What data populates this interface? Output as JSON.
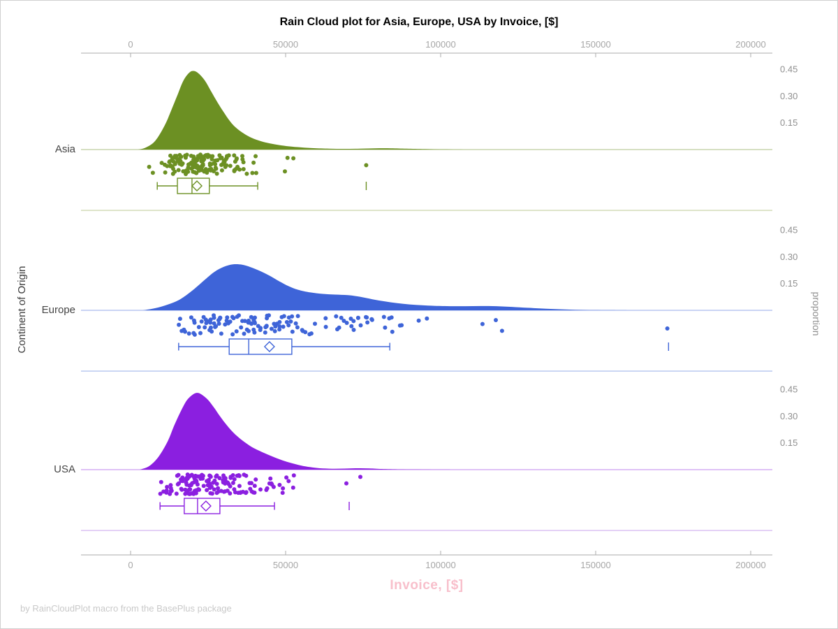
{
  "title": "Rain Cloud plot for Asia, Europe, USA by Invoice, [$]",
  "footer": "by RainCloudPlot macro from the BasePlus package",
  "x_axis": {
    "title": "Invoice, [$]",
    "title_color": "#f8bfcb",
    "ticks": [
      0,
      50000,
      100000,
      150000,
      200000
    ],
    "tick_labels": [
      "0",
      "50000",
      "100000",
      "150000",
      "200000"
    ]
  },
  "y_axis": {
    "title": "Continent of Origin"
  },
  "proportion_axis": {
    "title": "proportion",
    "ticks": [
      0.45,
      0.3,
      0.15
    ],
    "tick_labels": [
      "0.45",
      "0.30",
      "0.15"
    ]
  },
  "colors": {
    "axis_line": "#ababab",
    "tick_label": "#a6a6a6",
    "proportion_label": "#8f8f8f",
    "category_label": "#454545",
    "title": "#000000",
    "footer": "#c9c9c9"
  },
  "chart_data": {
    "type": "raincloud",
    "title": "Rain Cloud plot for Asia, Europe, USA by Invoice, [$]",
    "xlabel": "Invoice, [$]",
    "ylabel": "Continent of Origin",
    "proportion_ticks": [
      0.15,
      0.3,
      0.45
    ],
    "x_ticks": [
      0,
      50000,
      100000,
      150000,
      200000
    ],
    "groups": [
      {
        "label": "Asia",
        "color": "#6c9023",
        "light_color": "#d3dbb8",
        "density": [
          [
            2500,
            0
          ],
          [
            5000,
            0.012
          ],
          [
            8000,
            0.05
          ],
          [
            11000,
            0.135
          ],
          [
            13000,
            0.215
          ],
          [
            15000,
            0.3
          ],
          [
            17000,
            0.385
          ],
          [
            19000,
            0.432
          ],
          [
            20500,
            0.44
          ],
          [
            22000,
            0.425
          ],
          [
            24000,
            0.385
          ],
          [
            26000,
            0.325
          ],
          [
            28000,
            0.265
          ],
          [
            30000,
            0.21
          ],
          [
            32000,
            0.16
          ],
          [
            34000,
            0.122
          ],
          [
            36500,
            0.09
          ],
          [
            39000,
            0.066
          ],
          [
            42000,
            0.047
          ],
          [
            45000,
            0.034
          ],
          [
            48000,
            0.025
          ],
          [
            51000,
            0.018
          ],
          [
            55000,
            0.012
          ],
          [
            59000,
            0.008
          ],
          [
            64000,
            0.005
          ],
          [
            69000,
            0.004
          ],
          [
            74000,
            0.005
          ],
          [
            79000,
            0.007
          ],
          [
            84000,
            0.007
          ],
          [
            89000,
            0.005
          ],
          [
            95000,
            0.003
          ],
          [
            103000,
            0.001
          ],
          [
            112000,
            0
          ],
          [
            120000,
            0
          ]
        ],
        "box": {
          "whisker_min": 8600,
          "q1": 15100,
          "median": 19800,
          "mean": 21400,
          "q3": 25400,
          "whisker_max": 41000,
          "outliers": [
            76000
          ]
        },
        "rain": {
          "count": 150,
          "domain": [
            5500,
            60000
          ],
          "seed": 7,
          "extra_points": [
            [
              76000,
              0.55
            ]
          ]
        }
      },
      {
        "label": "Europe",
        "color": "#3e64d8",
        "light_color": "#b9c9ef",
        "density": [
          [
            4000,
            0
          ],
          [
            8000,
            0.012
          ],
          [
            12000,
            0.032
          ],
          [
            16000,
            0.062
          ],
          [
            20000,
            0.112
          ],
          [
            24000,
            0.172
          ],
          [
            27000,
            0.215
          ],
          [
            30000,
            0.243
          ],
          [
            33000,
            0.257
          ],
          [
            36000,
            0.255
          ],
          [
            39000,
            0.24
          ],
          [
            42000,
            0.218
          ],
          [
            45000,
            0.192
          ],
          [
            48000,
            0.162
          ],
          [
            51000,
            0.135
          ],
          [
            54000,
            0.115
          ],
          [
            58000,
            0.1
          ],
          [
            62000,
            0.092
          ],
          [
            66000,
            0.088
          ],
          [
            70000,
            0.085
          ],
          [
            74000,
            0.076
          ],
          [
            78000,
            0.062
          ],
          [
            82000,
            0.05
          ],
          [
            86000,
            0.04
          ],
          [
            90000,
            0.033
          ],
          [
            94000,
            0.028
          ],
          [
            98000,
            0.025
          ],
          [
            103000,
            0.023
          ],
          [
            108000,
            0.023
          ],
          [
            113000,
            0.024
          ],
          [
            118000,
            0.023
          ],
          [
            123000,
            0.019
          ],
          [
            128000,
            0.014
          ],
          [
            134000,
            0.009
          ],
          [
            140000,
            0.005
          ],
          [
            147000,
            0.002
          ],
          [
            155000,
            0.001
          ],
          [
            165000,
            0
          ],
          [
            205000,
            0
          ]
        ],
        "box": {
          "whisker_min": 15500,
          "q1": 31800,
          "median": 38100,
          "mean": 44800,
          "q3": 52000,
          "whisker_max": 83600,
          "outliers": [
            173500
          ]
        },
        "rain": {
          "count": 130,
          "domain": [
            15500,
            97000
          ],
          "seed": 11,
          "extra_points": [
            [
              113500,
              0.45
            ],
            [
              117800,
              0.25
            ],
            [
              119800,
              0.8
            ],
            [
              173100,
              0.68
            ]
          ]
        }
      },
      {
        "label": "USA",
        "color": "#8b1fe0",
        "light_color": "#dcc2f3",
        "density": [
          [
            3000,
            0
          ],
          [
            6000,
            0.02
          ],
          [
            9000,
            0.072
          ],
          [
            12000,
            0.16
          ],
          [
            14000,
            0.245
          ],
          [
            16000,
            0.32
          ],
          [
            18000,
            0.385
          ],
          [
            20000,
            0.42
          ],
          [
            21500,
            0.43
          ],
          [
            23000,
            0.42
          ],
          [
            25000,
            0.39
          ],
          [
            27000,
            0.345
          ],
          [
            29000,
            0.295
          ],
          [
            31000,
            0.25
          ],
          [
            33000,
            0.21
          ],
          [
            35000,
            0.178
          ],
          [
            37500,
            0.145
          ],
          [
            40000,
            0.118
          ],
          [
            43000,
            0.094
          ],
          [
            46000,
            0.072
          ],
          [
            49000,
            0.052
          ],
          [
            52000,
            0.036
          ],
          [
            55000,
            0.023
          ],
          [
            58000,
            0.014
          ],
          [
            61000,
            0.008
          ],
          [
            65000,
            0.005
          ],
          [
            69000,
            0.006
          ],
          [
            73000,
            0.008
          ],
          [
            77000,
            0.007
          ],
          [
            81000,
            0.004
          ],
          [
            87000,
            0.002
          ],
          [
            95000,
            0.001
          ],
          [
            105000,
            0
          ]
        ],
        "box": {
          "whisker_min": 9500,
          "q1": 17300,
          "median": 21600,
          "mean": 24300,
          "q3": 28800,
          "whisker_max": 46400,
          "outliers": [
            70500
          ]
        },
        "rain": {
          "count": 150,
          "domain": [
            7000,
            58000
          ],
          "seed": 23,
          "extra_points": [
            [
              69600,
              0.45
            ],
            [
              74100,
              0.12
            ]
          ]
        }
      }
    ]
  }
}
